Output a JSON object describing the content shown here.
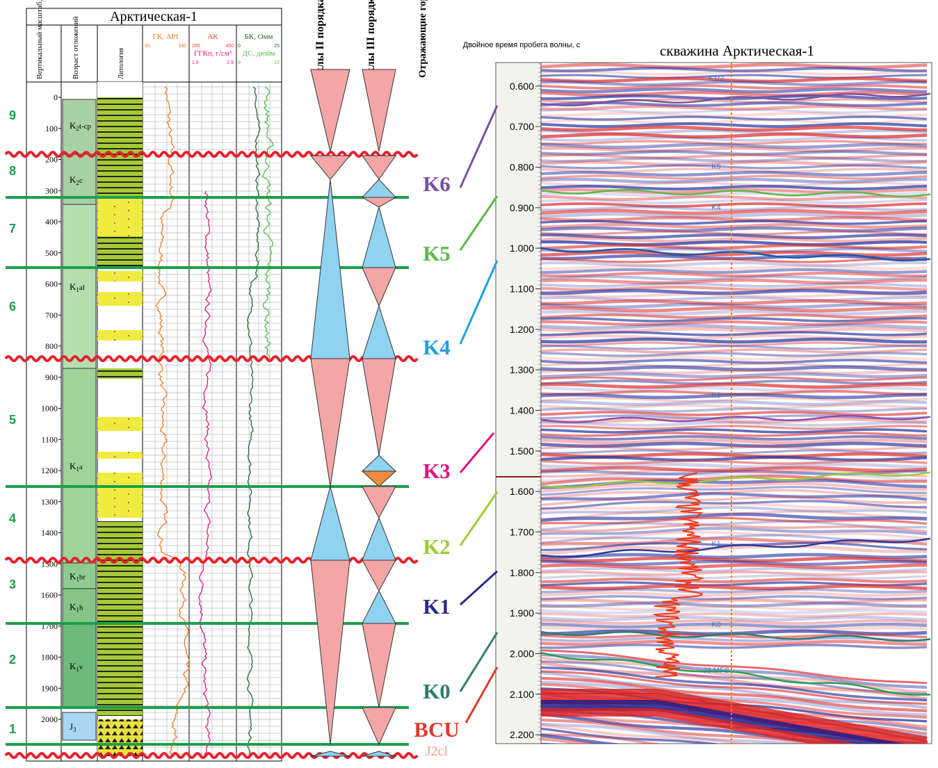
{
  "well": {
    "title": "Арктическая-1",
    "headers": {
      "depth": "Вертикальный масштаб, м",
      "age": "Возраст отложений",
      "lithology": "Литология"
    },
    "logs": [
      {
        "name": "ГК, API",
        "color": "#f07820",
        "min": "30",
        "max": "140"
      },
      {
        "name": "АК",
        "color": "#e8403a",
        "min": "200",
        "max": "450"
      },
      {
        "name": "ГГКп, г/см³",
        "color": "#e0147e",
        "min": "1.9",
        "max": "2.9"
      },
      {
        "name": "БК, Омм",
        "color": "#1a6a2a",
        "min": "0",
        "max": "25"
      },
      {
        "name": "ДС, дюйм",
        "color": "#4cb84c",
        "min": "9",
        "max": "12"
      }
    ],
    "depth_lim": [
      -50,
      2120
    ],
    "depth_ticks": [
      0,
      100,
      200,
      300,
      400,
      500,
      600,
      700,
      800,
      900,
      1000,
      1100,
      1200,
      1300,
      1400,
      1500,
      1600,
      1700,
      1800,
      1900,
      2000
    ],
    "sequences": [
      "9",
      "8",
      "7",
      "6",
      "5",
      "4",
      "3",
      "2",
      "1"
    ],
    "ages": [
      {
        "symbol": "K",
        "index": "2",
        "stage": "t-cp"
      },
      {
        "symbol": "K",
        "index": "2",
        "stage": "c"
      },
      {
        "symbol": "K",
        "index": "1",
        "stage": "al"
      },
      {
        "symbol": "K",
        "index": "1",
        "stage": "a"
      },
      {
        "symbol": "K",
        "index": "1",
        "stage": "br"
      },
      {
        "symbol": "K",
        "index": "1",
        "stage": "h"
      },
      {
        "symbol": "K",
        "index": "1",
        "stage": "v"
      },
      {
        "symbol": "J",
        "index": "3"
      }
    ]
  },
  "cycles": {
    "second_order": "Циклы II порядка",
    "third_order": "Циклы III порядка",
    "horizons": "Отражающие горизонты"
  },
  "horizons": [
    {
      "name": "K6",
      "color": "#7a4fa0"
    },
    {
      "name": "K5",
      "color": "#5cb84a"
    },
    {
      "name": "K4",
      "color": "#1ea0dc"
    },
    {
      "name": "K3",
      "color": "#e0147e"
    },
    {
      "name": "K2",
      "color": "#9acd32"
    },
    {
      "name": "K1",
      "color": "#2a2a8c"
    },
    {
      "name": "K0",
      "color": "#2e7d6e"
    },
    {
      "name": "BCU",
      "color": "#e03a2a"
    },
    {
      "name": "J2cl",
      "color": "#f0a090"
    }
  ],
  "seismic": {
    "title": "скважина Арктическая-1",
    "axis_label": "Двойное время пробега волны, с",
    "time_lim": [
      0.542,
      2.222
    ],
    "time_ticks": [
      {
        "value": 0.6,
        "label": "0.600"
      },
      {
        "value": 0.7,
        "label": "0.700"
      },
      {
        "value": 0.8,
        "label": "0.800"
      },
      {
        "value": 0.9,
        "label": "0.900"
      },
      {
        "value": 1.0,
        "label": "1.000"
      },
      {
        "value": 1.1,
        "label": "1.100"
      },
      {
        "value": 1.2,
        "label": "1.200"
      },
      {
        "value": 1.3,
        "label": "1.300"
      },
      {
        "value": 1.4,
        "label": "1.400"
      },
      {
        "value": 1.5,
        "label": "1.500"
      },
      {
        "value": 1.6,
        "label": "1.600"
      },
      {
        "value": 1.7,
        "label": "1.700"
      },
      {
        "value": 1.8,
        "label": "1.800"
      },
      {
        "value": 1.9,
        "label": "1.900"
      },
      {
        "value": 2.0,
        "label": "2.000"
      },
      {
        "value": 2.1,
        "label": "2.100"
      },
      {
        "value": 2.2,
        "label": "2.200"
      }
    ],
    "markers": [
      "K1/2",
      "K5",
      "K4",
      "K3",
      "K1",
      "K0",
      "J3 MFS"
    ]
  }
}
